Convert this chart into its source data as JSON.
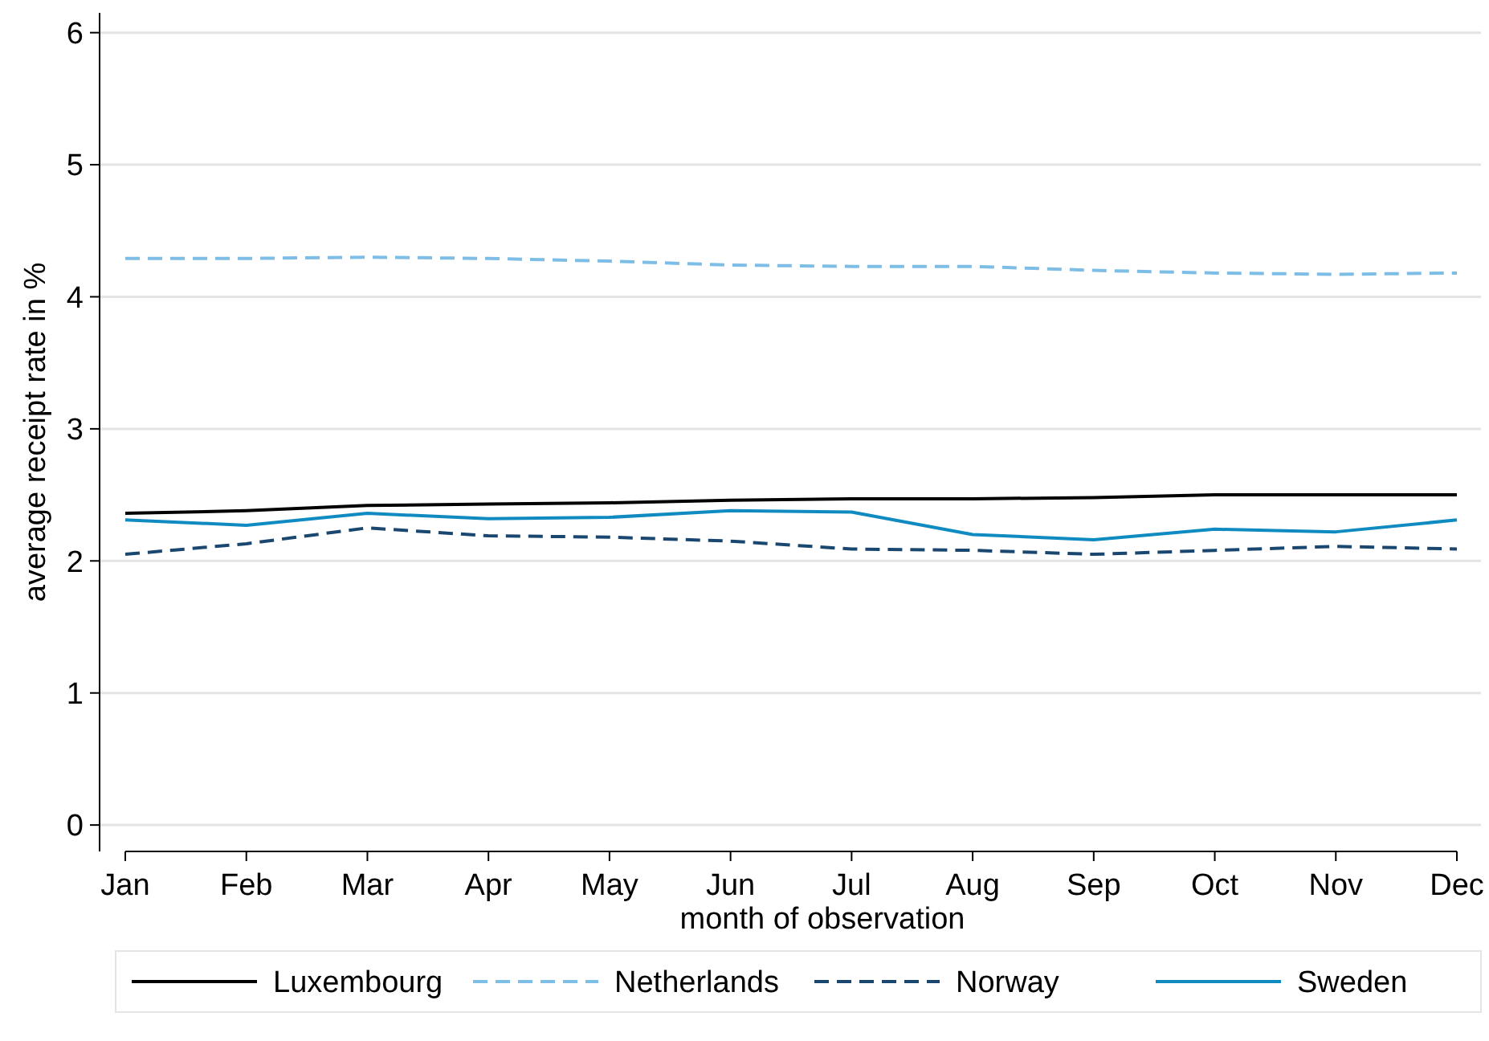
{
  "chart_data": {
    "type": "line",
    "xlabel": "month of observation",
    "ylabel": "average receipt rate in %",
    "categories": [
      "Jan",
      "Feb",
      "Mar",
      "Apr",
      "May",
      "Jun",
      "Jul",
      "Aug",
      "Sep",
      "Oct",
      "Nov",
      "Dec"
    ],
    "ylim": [
      -0.2,
      6.15
    ],
    "yticks": [
      0,
      1,
      2,
      3,
      4,
      5,
      6
    ],
    "grid": "y",
    "legend": "bottom",
    "marker": "none",
    "series": [
      {
        "name": "Luxembourg",
        "color": "#000000",
        "line_style": "solid",
        "values": [
          2.36,
          2.38,
          2.42,
          2.43,
          2.44,
          2.46,
          2.47,
          2.47,
          2.48,
          2.5,
          2.5,
          2.5
        ]
      },
      {
        "name": "Netherlands",
        "color": "#7ebde6",
        "line_style": "dashed",
        "values": [
          4.29,
          4.29,
          4.3,
          4.29,
          4.27,
          4.24,
          4.23,
          4.23,
          4.2,
          4.18,
          4.17,
          4.18
        ]
      },
      {
        "name": "Norway",
        "color": "#1a476f",
        "line_style": "dashed",
        "values": [
          2.05,
          2.13,
          2.25,
          2.19,
          2.18,
          2.15,
          2.09,
          2.08,
          2.05,
          2.08,
          2.11,
          2.09
        ]
      },
      {
        "name": "Sweden",
        "color": "#108bc1",
        "line_style": "solid",
        "values": [
          2.31,
          2.27,
          2.36,
          2.32,
          2.33,
          2.38,
          2.37,
          2.2,
          2.16,
          2.24,
          2.22,
          2.31
        ]
      }
    ]
  }
}
